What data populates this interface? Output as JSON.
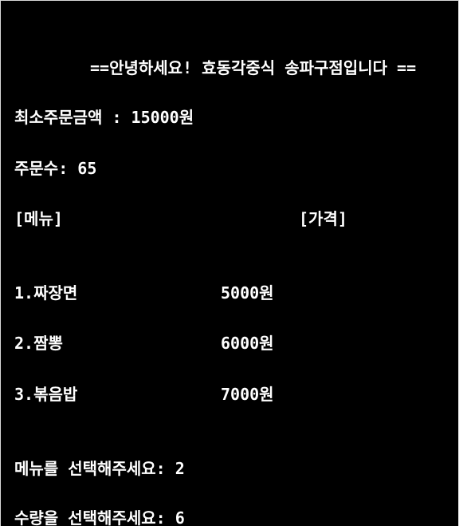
{
  "greeting": "==안녕하세요! 효동각중식 송파구점입니다 ==",
  "min_order": "최소주문금액 : 15000원",
  "order_count": "주문수: 65",
  "menu_header": {
    "menu_label": "[메뉴]",
    "price_label": "[가격]"
  },
  "menu_items": [
    {
      "name": "1.짜장면",
      "price": "5000원"
    },
    {
      "name": "2.짬뽕",
      "price": "6000원"
    },
    {
      "name": "3.볶음밥",
      "price": "7000원"
    }
  ],
  "prompts": {
    "select_menu": "메뉴를 선택해주세요: 2",
    "select_quantity": "수량을 선택해주세요: 6"
  }
}
